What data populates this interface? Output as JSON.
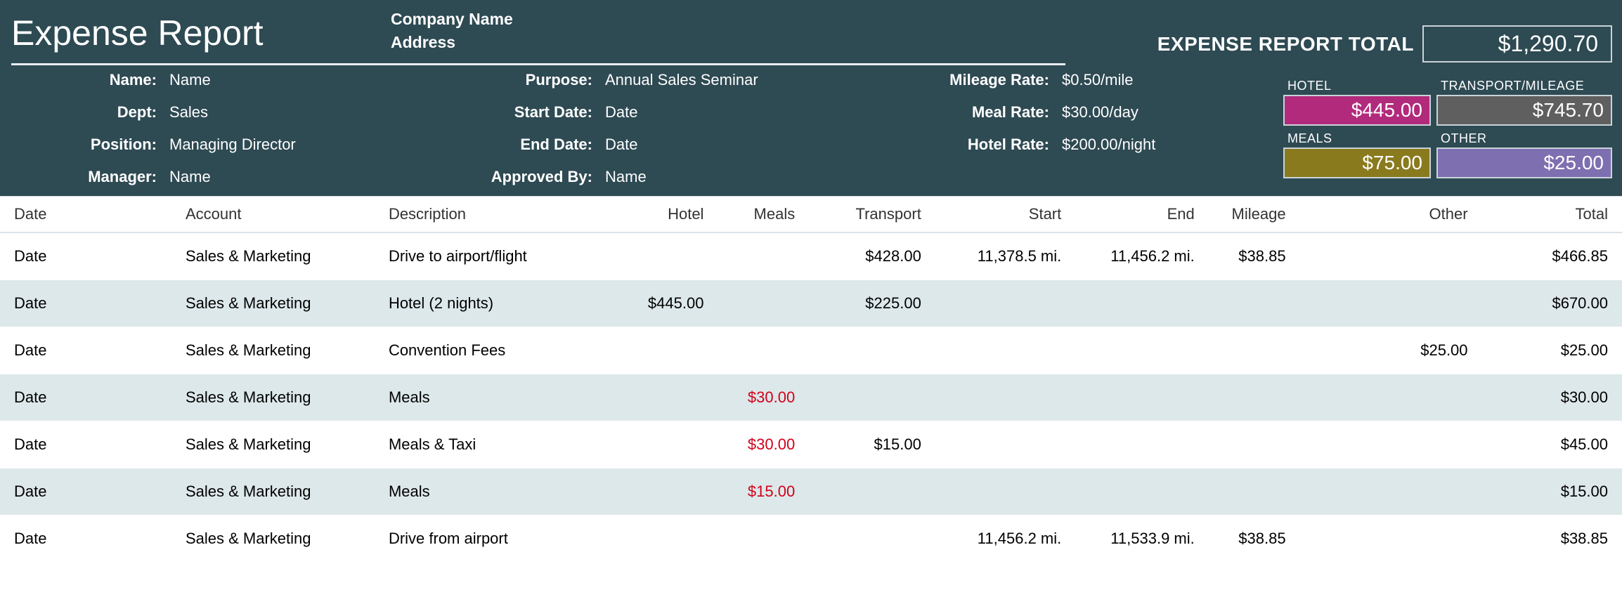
{
  "header": {
    "title": "Expense Report",
    "company_name": "Company Name",
    "company_address": "Address",
    "total_label": "EXPENSE REPORT TOTAL",
    "total_value": "$1,290.70"
  },
  "meta": {
    "left": [
      {
        "label": "Name:",
        "value": "Name"
      },
      {
        "label": "Dept:",
        "value": "Sales"
      },
      {
        "label": "Position:",
        "value": "Managing Director"
      },
      {
        "label": "Manager:",
        "value": "Name"
      }
    ],
    "mid": [
      {
        "label": "Purpose:",
        "value": "Annual Sales Seminar"
      },
      {
        "label": "Start Date:",
        "value": "Date"
      },
      {
        "label": "End Date:",
        "value": "Date"
      },
      {
        "label": "Approved By:",
        "value": "Name"
      }
    ],
    "right": [
      {
        "label": "Mileage Rate:",
        "value": "$0.50/mile"
      },
      {
        "label": "Meal Rate:",
        "value": "$30.00/day"
      },
      {
        "label": "Hotel Rate:",
        "value": "$200.00/night"
      }
    ]
  },
  "categories": {
    "hotel": {
      "label": "HOTEL",
      "value": "$445.00",
      "color": "#b12a7b"
    },
    "transport": {
      "label": "TRANSPORT/MILEAGE",
      "value": "$745.70",
      "color": "#5f5f5f"
    },
    "meals": {
      "label": "MEALS",
      "value": "$75.00",
      "color": "#8a7a1e"
    },
    "other": {
      "label": "OTHER",
      "value": "$25.00",
      "color": "#7d6fb0"
    }
  },
  "table": {
    "columns": [
      "Date",
      "Account",
      "Description",
      "Hotel",
      "Meals",
      "Transport",
      "Start",
      "End",
      "Mileage",
      "Other",
      "Total"
    ],
    "rows": [
      {
        "date": "Date",
        "account": "Sales & Marketing",
        "description": "Drive to airport/flight",
        "hotel": "",
        "meals": "",
        "meals_red": false,
        "transport": "$428.00",
        "start": "11,378.5  mi.",
        "end": "11,456.2  mi.",
        "mileage": "$38.85",
        "other": "",
        "total": "$466.85",
        "alt": false
      },
      {
        "date": "Date",
        "account": "Sales & Marketing",
        "description": "Hotel (2 nights)",
        "hotel": "$445.00",
        "meals": "",
        "meals_red": false,
        "transport": "$225.00",
        "start": "",
        "end": "",
        "mileage": "",
        "other": "",
        "total": "$670.00",
        "alt": true
      },
      {
        "date": "Date",
        "account": "Sales & Marketing",
        "description": "Convention Fees",
        "hotel": "",
        "meals": "",
        "meals_red": false,
        "transport": "",
        "start": "",
        "end": "",
        "mileage": "",
        "other": "$25.00",
        "total": "$25.00",
        "alt": false
      },
      {
        "date": "Date",
        "account": "Sales & Marketing",
        "description": "Meals",
        "hotel": "",
        "meals": "$30.00",
        "meals_red": true,
        "transport": "",
        "start": "",
        "end": "",
        "mileage": "",
        "other": "",
        "total": "$30.00",
        "alt": true
      },
      {
        "date": "Date",
        "account": "Sales & Marketing",
        "description": "Meals & Taxi",
        "hotel": "",
        "meals": "$30.00",
        "meals_red": true,
        "transport": "$15.00",
        "start": "",
        "end": "",
        "mileage": "",
        "other": "",
        "total": "$45.00",
        "alt": false
      },
      {
        "date": "Date",
        "account": "Sales & Marketing",
        "description": "Meals",
        "hotel": "",
        "meals": "$15.00",
        "meals_red": true,
        "transport": "",
        "start": "",
        "end": "",
        "mileage": "",
        "other": "",
        "total": "$15.00",
        "alt": true
      },
      {
        "date": "Date",
        "account": "Sales & Marketing",
        "description": "Drive from airport",
        "hotel": "",
        "meals": "",
        "meals_red": false,
        "transport": "",
        "start": "11,456.2  mi.",
        "end": "11,533.9  mi.",
        "mileage": "$38.85",
        "other": "",
        "total": "$38.85",
        "alt": false
      }
    ]
  },
  "styling": {
    "header_bg": "#2e4a53",
    "header_text": "#ffffff",
    "row_alt_bg": "#dde8ea",
    "red_text": "#d0021b",
    "border_color": "#d9e4e8",
    "title_fontsize": 50,
    "body_fontsize": 22
  }
}
